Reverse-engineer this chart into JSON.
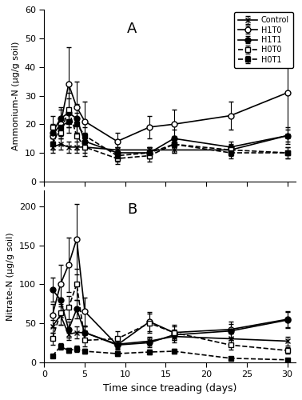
{
  "time_points": [
    1,
    2,
    3,
    4,
    5,
    9,
    13,
    16,
    23,
    30
  ],
  "ammonium": {
    "Control": {
      "mean": [
        12,
        13,
        12,
        12,
        12,
        11,
        11,
        11,
        11,
        16
      ],
      "sd": [
        2,
        2,
        2,
        2,
        2,
        1,
        1,
        1,
        1,
        2
      ]
    },
    "H1T0": {
      "mean": [
        16,
        20,
        34,
        26,
        21,
        14,
        19,
        20,
        23,
        31
      ],
      "sd": [
        3,
        5,
        13,
        9,
        7,
        3,
        4,
        5,
        5,
        15
      ]
    },
    "H1T1": {
      "mean": [
        17,
        22,
        24,
        22,
        14,
        10,
        10,
        15,
        12,
        16
      ],
      "sd": [
        3,
        4,
        5,
        5,
        3,
        2,
        2,
        3,
        2,
        3
      ]
    },
    "H0T0": {
      "mean": [
        19,
        17,
        25,
        16,
        12,
        8,
        9,
        13,
        11,
        10
      ],
      "sd": [
        4,
        4,
        6,
        5,
        3,
        2,
        2,
        3,
        2,
        2
      ]
    },
    "H0T1": {
      "mean": [
        13,
        19,
        21,
        20,
        16,
        9,
        10,
        13,
        10,
        10
      ],
      "sd": [
        2,
        3,
        4,
        4,
        3,
        2,
        2,
        2,
        2,
        2
      ]
    }
  },
  "nitrate": {
    "Control": {
      "mean": [
        46,
        60,
        36,
        38,
        38,
        23,
        27,
        33,
        30,
        27
      ],
      "sd": [
        8,
        12,
        8,
        8,
        8,
        5,
        6,
        8,
        7,
        6
      ]
    },
    "H1T0": {
      "mean": [
        60,
        100,
        125,
        158,
        65,
        22,
        52,
        38,
        42,
        55
      ],
      "sd": [
        15,
        25,
        35,
        45,
        18,
        6,
        12,
        8,
        10,
        10
      ]
    },
    "H1T1": {
      "mean": [
        93,
        80,
        42,
        68,
        38,
        22,
        25,
        35,
        40,
        54
      ],
      "sd": [
        15,
        18,
        10,
        12,
        8,
        5,
        6,
        7,
        9,
        10
      ]
    },
    "H0T0": {
      "mean": [
        30,
        63,
        70,
        100,
        28,
        30,
        50,
        38,
        22,
        15
      ],
      "sd": [
        8,
        15,
        15,
        20,
        8,
        10,
        12,
        10,
        6,
        4
      ]
    },
    "H0T1": {
      "mean": [
        8,
        20,
        15,
        17,
        14,
        11,
        13,
        14,
        5,
        3
      ],
      "sd": [
        2,
        4,
        3,
        4,
        3,
        3,
        3,
        3,
        2,
        2
      ]
    }
  },
  "series_styles": {
    "Control": {
      "color": "black",
      "marker": "x",
      "linestyle": "-",
      "markerfacecolor": "black",
      "markersize": 5
    },
    "H1T0": {
      "color": "black",
      "marker": "o",
      "linestyle": "-",
      "markerfacecolor": "white",
      "markersize": 5
    },
    "H1T1": {
      "color": "black",
      "marker": "o",
      "linestyle": "-",
      "markerfacecolor": "black",
      "markersize": 5
    },
    "H0T0": {
      "color": "black",
      "marker": "s",
      "linestyle": "--",
      "markerfacecolor": "white",
      "markersize": 5
    },
    "H0T1": {
      "color": "black",
      "marker": "s",
      "linestyle": "--",
      "markerfacecolor": "black",
      "markersize": 5
    }
  },
  "panel_A_label": "A",
  "panel_B_label": "B",
  "ylabel_A": "Ammonium-N (μg/g soil)",
  "ylabel_B": "Nitrate-N (μg/g soil)",
  "xlabel": "Time since treading (days)",
  "ylim_A": [
    0,
    60
  ],
  "ylim_B": [
    0,
    220
  ],
  "yticks_A": [
    0,
    10,
    20,
    30,
    40,
    50,
    60
  ],
  "yticks_B": [
    0,
    50,
    100,
    150,
    200
  ],
  "xlim": [
    0,
    31
  ],
  "xticks": [
    0,
    5,
    10,
    15,
    20,
    25,
    30
  ],
  "legend_order": [
    "Control",
    "H1T0",
    "H1T1",
    "H0T0",
    "H0T1"
  ],
  "linewidth": 1.2,
  "capsize": 2,
  "elinewidth": 0.8,
  "figsize": [
    3.78,
    5.0
  ],
  "dpi": 100
}
